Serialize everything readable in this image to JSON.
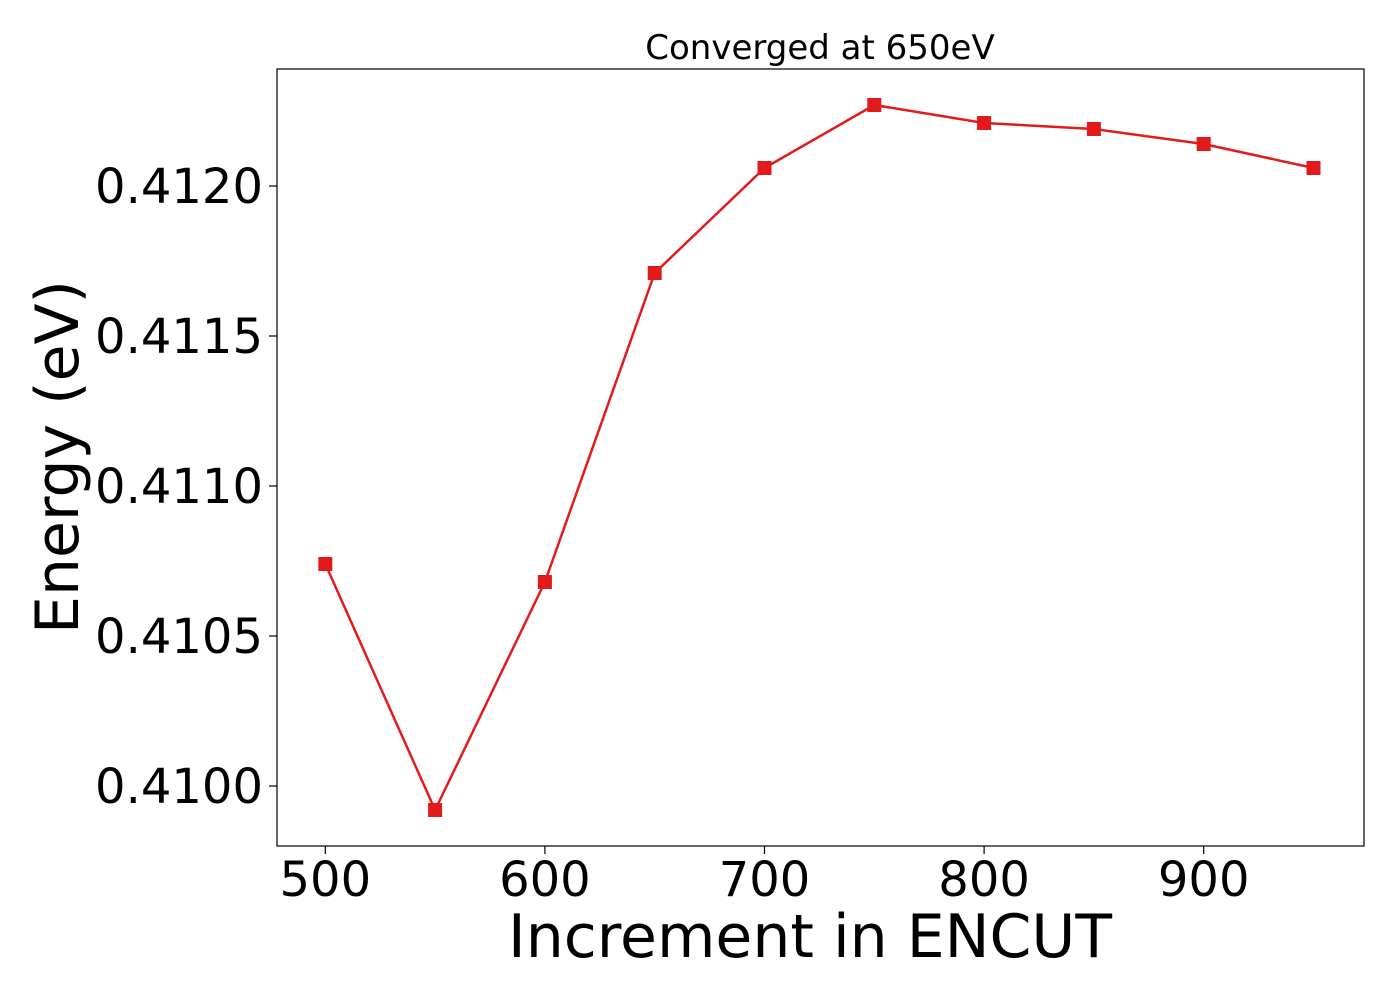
{
  "chart_data": {
    "type": "line",
    "title": "Converged at 650eV",
    "xlabel": "Increment in ENCUT",
    "ylabel": "Energy (eV)",
    "xlim": [
      478,
      973
    ],
    "ylim": [
      0.4098,
      0.41239
    ],
    "xticks": [
      500,
      600,
      700,
      800,
      900
    ],
    "xtick_labels": [
      "500",
      "600",
      "700",
      "800",
      "900"
    ],
    "yticks": [
      0.41,
      0.4105,
      0.411,
      0.4115,
      0.412
    ],
    "ytick_labels": [
      "0.4100",
      "0.4105",
      "0.4110",
      "0.4115",
      "0.4120"
    ],
    "grid": false,
    "series": [
      {
        "color": "#e31a1c",
        "marker": "square",
        "x": [
          500,
          550,
          600,
          650,
          700,
          750,
          800,
          850,
          900,
          950
        ],
        "y": [
          0.41074,
          0.40992,
          0.41068,
          0.41171,
          0.41206,
          0.41227,
          0.41221,
          0.41219,
          0.41214,
          0.41206
        ]
      }
    ]
  }
}
